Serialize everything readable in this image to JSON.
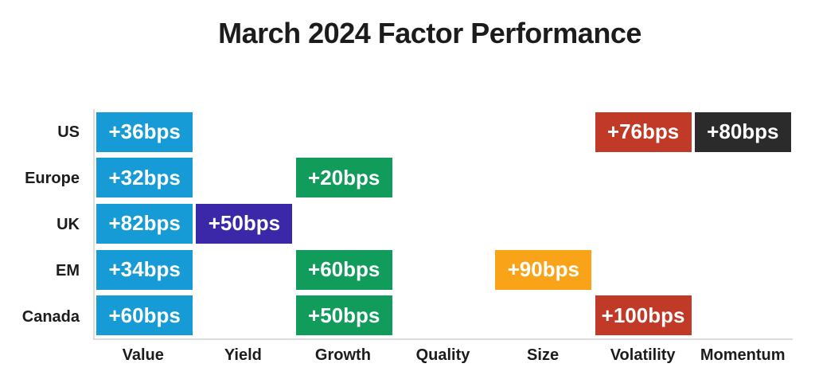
{
  "chart_data": {
    "type": "heatmap",
    "title": "March 2024 Factor Performance",
    "unit": "bps",
    "legend": "none",
    "grid": "off",
    "axis_color": "#dcdcdc",
    "text_color_on_box": "#ffffff",
    "label_color": "#1c1c1c",
    "columns": [
      "Value",
      "Yield",
      "Growth",
      "Quality",
      "Size",
      "Volatility",
      "Momentum"
    ],
    "rows": [
      "US",
      "Europe",
      "UK",
      "EM",
      "Canada"
    ],
    "factor_colors": {
      "Value": "#169BD7",
      "Yield": "#3A28A8",
      "Growth": "#119C5C",
      "Size": "#F9A418",
      "Volatility": "#C13A27",
      "Momentum": "#2B2B2B"
    },
    "cells": [
      {
        "row": "US",
        "column": "Value",
        "value": 36,
        "label": "+36bps",
        "color": "#169BD7"
      },
      {
        "row": "US",
        "column": "Volatility",
        "value": 76,
        "label": "+76bps",
        "color": "#C13A27"
      },
      {
        "row": "US",
        "column": "Momentum",
        "value": 80,
        "label": "+80bps",
        "color": "#2B2B2B"
      },
      {
        "row": "Europe",
        "column": "Value",
        "value": 32,
        "label": "+32bps",
        "color": "#169BD7"
      },
      {
        "row": "Europe",
        "column": "Growth",
        "value": 20,
        "label": "+20bps",
        "color": "#119C5C"
      },
      {
        "row": "UK",
        "column": "Value",
        "value": 82,
        "label": "+82bps",
        "color": "#169BD7"
      },
      {
        "row": "UK",
        "column": "Yield",
        "value": 50,
        "label": "+50bps",
        "color": "#3A28A8"
      },
      {
        "row": "EM",
        "column": "Value",
        "value": 34,
        "label": "+34bps",
        "color": "#169BD7"
      },
      {
        "row": "EM",
        "column": "Growth",
        "value": 60,
        "label": "+60bps",
        "color": "#119C5C"
      },
      {
        "row": "EM",
        "column": "Size",
        "value": 90,
        "label": "+90bps",
        "color": "#F9A418"
      },
      {
        "row": "Canada",
        "column": "Value",
        "value": 60,
        "label": "+60bps",
        "color": "#169BD7"
      },
      {
        "row": "Canada",
        "column": "Growth",
        "value": 50,
        "label": "+50bps",
        "color": "#119C5C"
      },
      {
        "row": "Canada",
        "column": "Volatility",
        "value": 100,
        "label": "+100bps",
        "color": "#C13A27"
      }
    ]
  }
}
